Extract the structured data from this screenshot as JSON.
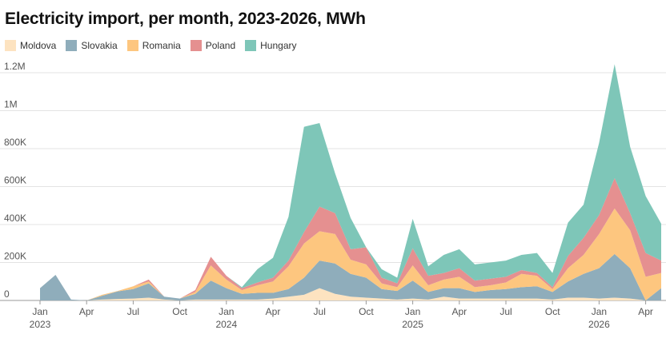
{
  "chart_data": {
    "type": "area",
    "stacked": true,
    "title": "Electricity import, per month, 2023-2026, MWh",
    "legend_position": "top-left",
    "grid": true,
    "x": [
      "2023-01",
      "2023-02",
      "2023-03",
      "2023-04",
      "2023-05",
      "2023-06",
      "2023-07",
      "2023-08",
      "2023-09",
      "2023-10",
      "2023-11",
      "2023-12",
      "2024-01",
      "2024-02",
      "2024-03",
      "2024-04",
      "2024-05",
      "2024-06",
      "2024-07",
      "2024-08",
      "2024-09",
      "2024-10",
      "2024-11",
      "2024-12",
      "2025-01",
      "2025-02",
      "2025-03",
      "2025-04",
      "2025-05",
      "2025-06",
      "2025-07",
      "2025-08",
      "2025-09",
      "2025-10",
      "2025-11",
      "2025-12",
      "2026-01",
      "2026-02",
      "2026-03",
      "2026-04",
      "2026-05"
    ],
    "x_ticks": [
      {
        "index": 0,
        "label": "Jan",
        "year": "2023"
      },
      {
        "index": 3,
        "label": "Apr",
        "year": ""
      },
      {
        "index": 6,
        "label": "Jul",
        "year": ""
      },
      {
        "index": 9,
        "label": "Oct",
        "year": ""
      },
      {
        "index": 12,
        "label": "Jan",
        "year": "2024"
      },
      {
        "index": 15,
        "label": "Apr",
        "year": ""
      },
      {
        "index": 18,
        "label": "Jul",
        "year": ""
      },
      {
        "index": 21,
        "label": "Oct",
        "year": ""
      },
      {
        "index": 24,
        "label": "Jan",
        "year": "2025"
      },
      {
        "index": 27,
        "label": "Apr",
        "year": ""
      },
      {
        "index": 30,
        "label": "Jul",
        "year": ""
      },
      {
        "index": 33,
        "label": "Oct",
        "year": ""
      },
      {
        "index": 36,
        "label": "Jan",
        "year": "2026"
      },
      {
        "index": 39,
        "label": "Apr",
        "year": ""
      }
    ],
    "ylim": [
      0,
      1300000
    ],
    "y_ticks": [
      {
        "value": 0,
        "label": "0"
      },
      {
        "value": 200000,
        "label": "200K"
      },
      {
        "value": 400000,
        "label": "400K"
      },
      {
        "value": 600000,
        "label": "600K"
      },
      {
        "value": 800000,
        "label": "800K"
      },
      {
        "value": 1000000,
        "label": "1M"
      },
      {
        "value": 1200000,
        "label": "1.2M"
      }
    ],
    "series": [
      {
        "name": "Moldova",
        "color": "#fde3c0",
        "values": [
          0,
          0,
          0,
          0,
          5000,
          8000,
          10000,
          15000,
          5000,
          0,
          5000,
          5000,
          5000,
          5000,
          5000,
          10000,
          20000,
          30000,
          65000,
          35000,
          20000,
          15000,
          10000,
          5000,
          10000,
          5000,
          20000,
          10000,
          10000,
          10000,
          10000,
          10000,
          10000,
          5000,
          15000,
          15000,
          10000,
          15000,
          10000,
          0,
          0
        ]
      },
      {
        "name": "Slovakia",
        "color": "#8fadbb",
        "values": [
          65000,
          135000,
          5000,
          0,
          20000,
          40000,
          50000,
          75000,
          15000,
          10000,
          30000,
          100000,
          60000,
          30000,
          35000,
          30000,
          40000,
          90000,
          145000,
          160000,
          120000,
          105000,
          50000,
          45000,
          95000,
          40000,
          45000,
          55000,
          35000,
          45000,
          50000,
          60000,
          65000,
          40000,
          85000,
          125000,
          160000,
          230000,
          160000,
          0,
          65000
        ]
      },
      {
        "name": "Romania",
        "color": "#fdc67f",
        "values": [
          0,
          0,
          0,
          0,
          5000,
          2000,
          15000,
          10000,
          0,
          0,
          10000,
          80000,
          45000,
          20000,
          40000,
          60000,
          120000,
          180000,
          155000,
          155000,
          75000,
          70000,
          30000,
          20000,
          80000,
          35000,
          45000,
          60000,
          25000,
          25000,
          35000,
          70000,
          55000,
          15000,
          70000,
          100000,
          180000,
          240000,
          200000,
          125000,
          80000
        ]
      },
      {
        "name": "Poland",
        "color": "#e59090",
        "values": [
          0,
          0,
          0,
          0,
          0,
          0,
          0,
          10000,
          0,
          0,
          10000,
          45000,
          20000,
          10000,
          15000,
          20000,
          30000,
          60000,
          130000,
          110000,
          55000,
          90000,
          30000,
          20000,
          90000,
          50000,
          35000,
          45000,
          35000,
          35000,
          30000,
          20000,
          15000,
          10000,
          65000,
          90000,
          100000,
          160000,
          90000,
          125000,
          65000
        ]
      },
      {
        "name": "Hungary",
        "color": "#7ec6b8",
        "values": [
          0,
          0,
          0,
          0,
          0,
          0,
          0,
          0,
          0,
          0,
          0,
          0,
          0,
          5000,
          70000,
          105000,
          230000,
          555000,
          440000,
          210000,
          165000,
          0,
          45000,
          30000,
          155000,
          50000,
          95000,
          100000,
          85000,
          85000,
          85000,
          80000,
          105000,
          75000,
          175000,
          175000,
          380000,
          600000,
          350000,
          300000,
          195000
        ]
      }
    ]
  }
}
